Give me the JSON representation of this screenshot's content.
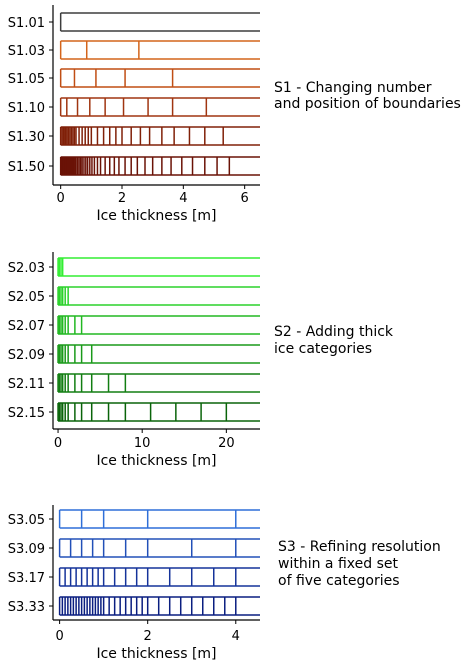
{
  "chart_data": [
    {
      "type": "bar",
      "xlabel": "Ice thickness [m]",
      "xlim": [
        -0.25,
        6.5
      ],
      "xticks": [
        "0",
        "2",
        "4",
        "6"
      ],
      "xtick_values": [
        0,
        2,
        4,
        6
      ],
      "annotation": [
        "S1 - Changing number",
        "and position of boundaries"
      ],
      "series": [
        {
          "name": "S1.01",
          "color": "#3d3d3d",
          "boundaries": [
            0
          ]
        },
        {
          "name": "S1.03",
          "color": "#d4651c",
          "boundaries": [
            0,
            0.85,
            2.55
          ]
        },
        {
          "name": "S1.05",
          "color": "#c04e14",
          "boundaries": [
            0,
            0.45,
            1.15,
            2.1,
            3.65
          ]
        },
        {
          "name": "S1.10",
          "color": "#a03510",
          "boundaries": [
            0,
            0.2,
            0.55,
            0.95,
            1.45,
            2.05,
            2.85,
            3.65,
            4.75
          ]
        },
        {
          "name": "S1.30",
          "color": "#802008",
          "boundaries": [
            0,
            0.05,
            0.1,
            0.15,
            0.2,
            0.25,
            0.3,
            0.35,
            0.4,
            0.45,
            0.5,
            0.6,
            0.7,
            0.8,
            0.9,
            1.0,
            1.2,
            1.4,
            1.6,
            1.8,
            2.0,
            2.3,
            2.6,
            2.9,
            3.3,
            3.7,
            4.2,
            4.7,
            5.3
          ]
        },
        {
          "name": "S1.50",
          "color": "#6a1206",
          "boundaries": [
            0,
            0.02,
            0.04,
            0.06,
            0.08,
            0.1,
            0.12,
            0.14,
            0.16,
            0.18,
            0.2,
            0.23,
            0.26,
            0.29,
            0.32,
            0.35,
            0.38,
            0.42,
            0.46,
            0.5,
            0.55,
            0.6,
            0.65,
            0.7,
            0.76,
            0.82,
            0.88,
            0.95,
            1.02,
            1.1,
            1.2,
            1.3,
            1.45,
            1.6,
            1.75,
            1.9,
            2.1,
            2.3,
            2.5,
            2.75,
            3.0,
            3.3,
            3.6,
            3.95,
            4.3,
            4.7,
            5.1,
            5.5
          ]
        }
      ]
    },
    {
      "type": "bar",
      "xlabel": "Ice thickness [m]",
      "xlim": [
        -0.6,
        24
      ],
      "xticks": [
        "0",
        "10",
        "20"
      ],
      "xtick_values": [
        0,
        10,
        20
      ],
      "annotation": [
        "S2 - Adding thick",
        "ice categories"
      ],
      "series": [
        {
          "name": "S2.03",
          "color": "#33ee33",
          "boundaries": [
            0,
            0.15,
            0.35,
            0.55
          ]
        },
        {
          "name": "S2.05",
          "color": "#2bd22b",
          "boundaries": [
            0,
            0.15,
            0.35,
            0.55,
            0.85,
            1.2
          ]
        },
        {
          "name": "S2.07",
          "color": "#22b822",
          "boundaries": [
            0,
            0.15,
            0.35,
            0.55,
            0.85,
            1.2,
            2.0,
            2.8
          ]
        },
        {
          "name": "S2.09",
          "color": "#1a9a1a",
          "boundaries": [
            0,
            0.15,
            0.35,
            0.55,
            0.85,
            1.2,
            2.0,
            2.8,
            4.0
          ]
        },
        {
          "name": "S2.11",
          "color": "#127e12",
          "boundaries": [
            0,
            0.15,
            0.35,
            0.55,
            0.85,
            1.2,
            2.0,
            2.8,
            4.0,
            6.0,
            8.0
          ]
        },
        {
          "name": "S2.15",
          "color": "#0a640a",
          "boundaries": [
            0,
            0.15,
            0.35,
            0.55,
            0.85,
            1.2,
            2.0,
            2.8,
            4.0,
            6.0,
            8.0,
            11.0,
            14.0,
            17.0,
            20.0
          ]
        }
      ]
    },
    {
      "type": "bar",
      "xlabel": "Ice thickness [m]",
      "xlim": [
        -0.15,
        4.55
      ],
      "xticks": [
        "0",
        "2",
        "4"
      ],
      "xtick_values": [
        0,
        2,
        4
      ],
      "annotation": [
        "S3 - Refining resolution",
        "within a fixed set",
        "of five categories"
      ],
      "series": [
        {
          "name": "S3.05",
          "color": "#2f6fd8",
          "boundaries": [
            0,
            0.5,
            1.0,
            2.0,
            4.0
          ]
        },
        {
          "name": "S3.09",
          "color": "#2250b8",
          "boundaries": [
            0,
            0.25,
            0.5,
            0.75,
            1.0,
            1.5,
            2.0,
            3.0,
            4.0
          ]
        },
        {
          "name": "S3.17",
          "color": "#15339a",
          "boundaries": [
            0,
            0.125,
            0.25,
            0.375,
            0.5,
            0.625,
            0.75,
            0.875,
            1.0,
            1.25,
            1.5,
            1.75,
            2.0,
            2.5,
            3.0,
            3.5,
            4.0
          ]
        },
        {
          "name": "S3.33",
          "color": "#0a1e80",
          "boundaries": [
            0,
            0.0625,
            0.125,
            0.1875,
            0.25,
            0.3125,
            0.375,
            0.4375,
            0.5,
            0.5625,
            0.625,
            0.6875,
            0.75,
            0.8125,
            0.875,
            0.9375,
            1.0,
            1.125,
            1.25,
            1.375,
            1.5,
            1.625,
            1.75,
            1.875,
            2.0,
            2.25,
            2.5,
            2.75,
            3.0,
            3.25,
            3.5,
            3.75,
            4.0
          ]
        }
      ]
    }
  ]
}
